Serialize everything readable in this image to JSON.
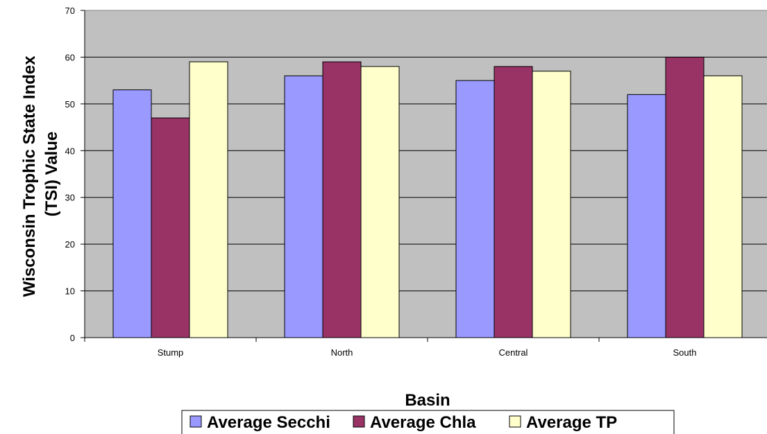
{
  "chart_data": {
    "type": "bar",
    "categories": [
      "Stump",
      "North",
      "Central",
      "South"
    ],
    "series": [
      {
        "name": "Average Secchi",
        "values": [
          53,
          56,
          55,
          52
        ],
        "color": "#9999FF"
      },
      {
        "name": "Average Chla",
        "values": [
          47,
          59,
          58,
          60
        ],
        "color": "#993366"
      },
      {
        "name": "Average TP",
        "values": [
          59,
          58,
          57,
          56
        ],
        "color": "#FFFFCC"
      }
    ],
    "title": "",
    "xlabel": "Basin",
    "ylabel": "Wisconsin Trophic State Index (TSI) Value",
    "ylabel_lines": [
      "Wisconsin Trophic State Index",
      "(TSI) Value"
    ],
    "ylim": [
      0,
      70
    ],
    "yticks": [
      0,
      10,
      20,
      30,
      40,
      50,
      60,
      70
    ],
    "grid": true,
    "legend_position": "bottom",
    "plot_background": "#C0C0C0"
  }
}
